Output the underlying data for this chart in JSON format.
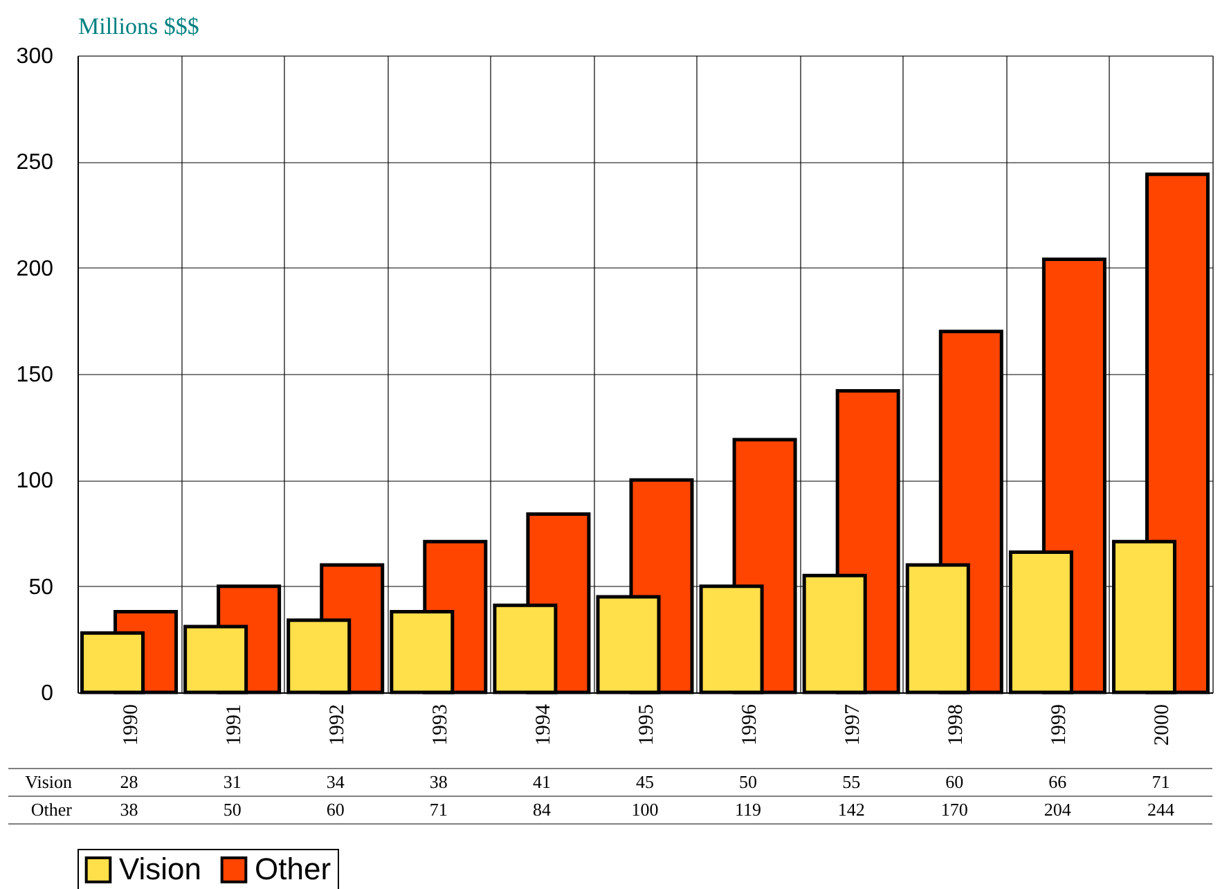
{
  "chart_data": {
    "type": "bar",
    "ylabel": "Millions $$$",
    "categories": [
      "1990",
      "1991",
      "1992",
      "1993",
      "1994",
      "1995",
      "1996",
      "1997",
      "1998",
      "1999",
      "2000"
    ],
    "series": [
      {
        "name": "Vision",
        "color": "#ffdf4a",
        "values": [
          28,
          31,
          34,
          38,
          41,
          45,
          50,
          55,
          60,
          66,
          71
        ]
      },
      {
        "name": "Other",
        "color": "#ff4500",
        "values": [
          38,
          50,
          60,
          71,
          84,
          100,
          119,
          142,
          170,
          204,
          244
        ]
      }
    ],
    "ylim": [
      0,
      300
    ],
    "yticks": [
      0,
      50,
      100,
      150,
      200,
      250,
      300
    ],
    "grid": true,
    "legend": "bottom",
    "data_labels": true
  }
}
